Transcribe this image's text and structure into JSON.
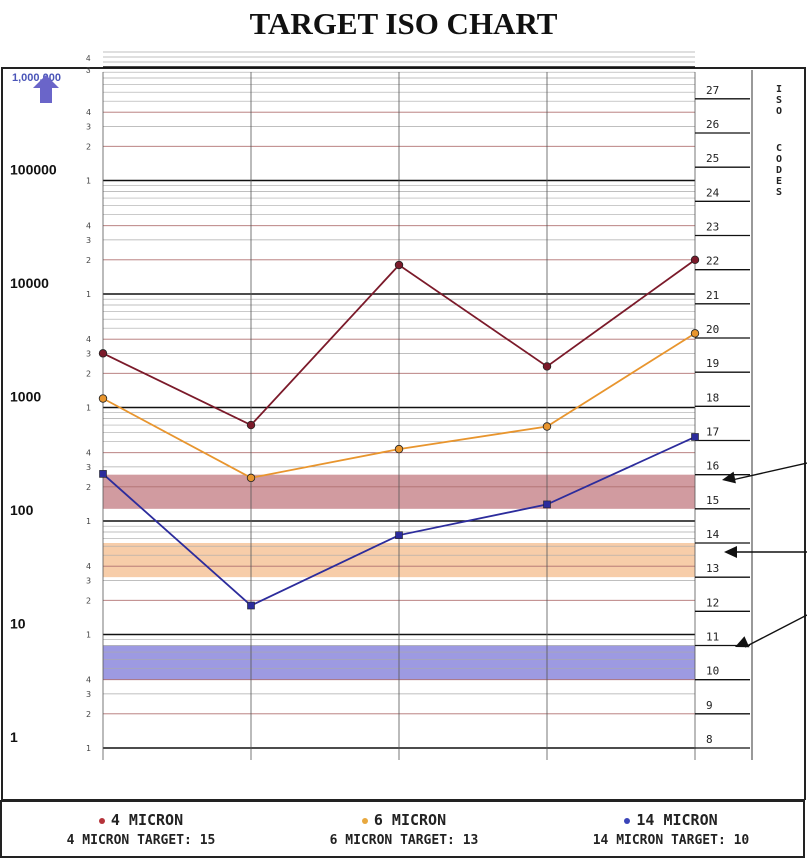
{
  "title": "TARGET ISO CHART",
  "chart_data": {
    "type": "line",
    "title": "TARGET ISO CHART",
    "y_scale": "log",
    "ylim": [
      1,
      1000000
    ],
    "grid": true,
    "legend_position": "bottom",
    "x_points": 5,
    "left_axis": {
      "decade_labels": [
        "1",
        "10",
        "100",
        "1000",
        "10000",
        "100000",
        "1,000,000"
      ],
      "minor_labels": [
        "1",
        "2",
        "3",
        "4"
      ]
    },
    "right_axis": {
      "title": "ISO CODES",
      "codes": [
        "8",
        "9",
        "10",
        "11",
        "12",
        "13",
        "14",
        "15",
        "16",
        "17",
        "18",
        "19",
        "20",
        "21",
        "22",
        "23",
        "24",
        "25",
        "26",
        "27"
      ]
    },
    "series": [
      {
        "name": "4 MICRON",
        "color": "#7b1a2a",
        "values": [
          3000,
          700,
          18000,
          2300,
          20000
        ]
      },
      {
        "name": "6 MICRON",
        "color": "#e8952e",
        "values": [
          1200,
          240,
          430,
          680,
          4500
        ]
      },
      {
        "name": "14 MICRON",
        "color": "#2c2c9c",
        "values": [
          260,
          18,
          75,
          140,
          550
        ]
      }
    ],
    "target_bands": [
      {
        "label": "4 MICRON TARGET: 15",
        "code": 15,
        "color": "#c98a8f"
      },
      {
        "label": "6 MICRON TARGET: 13",
        "code": 13,
        "color": "#f6c49a"
      },
      {
        "label": "14 MICRON TARGET: 10",
        "code": 10,
        "color": "#8c88dd"
      }
    ]
  },
  "legend": [
    {
      "series": "4 MICRON",
      "target": "4 MICRON TARGET: 15",
      "color": "#b5333a"
    },
    {
      "series": "6 MICRON",
      "target": "6 MICRON TARGET: 13",
      "color": "#e8a83e"
    },
    {
      "series": "14 MICRON",
      "target": "14 MICRON TARGET: 10",
      "color": "#3a44b8"
    }
  ]
}
